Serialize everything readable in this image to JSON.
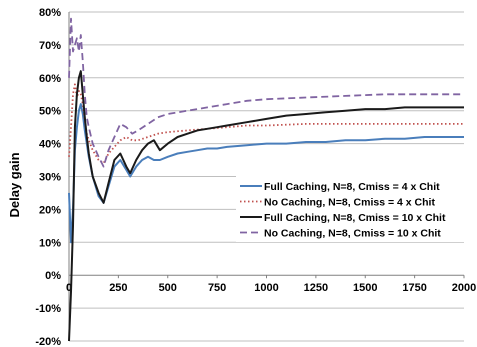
{
  "chart_data": {
    "type": "line",
    "title": "",
    "xlabel": "",
    "ylabel": "Delay gain",
    "xlim": [
      0,
      2000
    ],
    "ylim": [
      -20,
      80
    ],
    "x_ticks": [
      "0",
      "250",
      "500",
      "750",
      "1000",
      "1250",
      "1500",
      "1750",
      "2000"
    ],
    "y_ticks": [
      "-20%",
      "-10%",
      "0%",
      "10%",
      "20%",
      "30%",
      "40%",
      "50%",
      "60%",
      "70%",
      "80%"
    ],
    "grid": "horizontal",
    "legend_position": "right",
    "series": [
      {
        "name": "Full Caching, N=8, Cmiss = 4 x Chit",
        "color": "#4a7ebb",
        "style": "solid",
        "x": [
          0,
          10,
          20,
          30,
          40,
          50,
          60,
          70,
          80,
          90,
          100,
          120,
          150,
          175,
          200,
          230,
          260,
          290,
          310,
          340,
          370,
          400,
          430,
          460,
          500,
          550,
          600,
          650,
          700,
          750,
          800,
          900,
          1000,
          1100,
          1200,
          1300,
          1400,
          1500,
          1600,
          1700,
          1800,
          1900,
          2000
        ],
        "values": [
          25,
          10,
          20,
          38,
          45,
          50,
          52,
          49,
          44,
          40,
          36,
          30,
          24,
          22,
          27,
          33,
          35,
          32,
          30,
          33,
          35,
          36,
          35,
          35,
          36,
          37,
          37.5,
          38,
          38.5,
          38.5,
          39,
          39.5,
          40,
          40,
          40.5,
          40.5,
          41,
          41,
          41.5,
          41.5,
          42,
          42,
          42
        ]
      },
      {
        "name": "No Caching, N=8, Cmiss = 4 x Chit",
        "color": "#c0504d",
        "style": "dotted",
        "x": [
          0,
          10,
          20,
          30,
          40,
          50,
          60,
          70,
          80,
          90,
          100,
          120,
          150,
          175,
          200,
          230,
          260,
          290,
          320,
          350,
          400,
          450,
          500,
          600,
          700,
          800,
          900,
          1000,
          1200,
          1400,
          1600,
          1800,
          2000
        ],
        "values": [
          36,
          45,
          55,
          58,
          54,
          56,
          55,
          52,
          47,
          43,
          41,
          38,
          35,
          34,
          37,
          39,
          41,
          42,
          41,
          41,
          42,
          43,
          43.5,
          44,
          44.5,
          45,
          45.5,
          45.5,
          46,
          46,
          46,
          46,
          46
        ]
      },
      {
        "name": "Full Caching, N=8, Cmiss = 10 x Chit",
        "color": "#1a1a1a",
        "style": "solid",
        "x": [
          0,
          10,
          20,
          30,
          40,
          50,
          60,
          70,
          80,
          90,
          100,
          120,
          150,
          175,
          200,
          230,
          260,
          290,
          310,
          340,
          370,
          400,
          430,
          460,
          500,
          550,
          600,
          650,
          700,
          750,
          800,
          900,
          1000,
          1100,
          1200,
          1300,
          1400,
          1500,
          1600,
          1700,
          1800,
          1900,
          2000
        ],
        "values": [
          -20,
          -5,
          15,
          45,
          55,
          60,
          62,
          55,
          48,
          42,
          37,
          30,
          25,
          22,
          28,
          35,
          37,
          33,
          31,
          35,
          38,
          40,
          41,
          38,
          40,
          42,
          43,
          44,
          44.5,
          45,
          45.5,
          46.5,
          47.5,
          48.5,
          49,
          49.5,
          50,
          50.5,
          50.5,
          51,
          51,
          51,
          51
        ]
      },
      {
        "name": "No Caching, N=8, Cmiss = 10 x Chit",
        "color": "#8064a2",
        "style": "dashed",
        "x": [
          0,
          10,
          20,
          30,
          40,
          50,
          60,
          70,
          80,
          90,
          100,
          120,
          150,
          175,
          200,
          230,
          260,
          290,
          320,
          350,
          400,
          450,
          500,
          600,
          700,
          800,
          900,
          1000,
          1200,
          1400,
          1600,
          1800,
          2000
        ],
        "values": [
          60,
          78,
          68,
          70,
          72,
          68,
          73,
          65,
          55,
          48,
          45,
          40,
          36,
          33,
          38,
          42,
          46,
          45,
          43,
          44,
          46,
          48,
          49,
          50,
          51,
          52,
          53,
          53.5,
          54,
          54.5,
          55,
          55,
          55
        ]
      }
    ]
  }
}
